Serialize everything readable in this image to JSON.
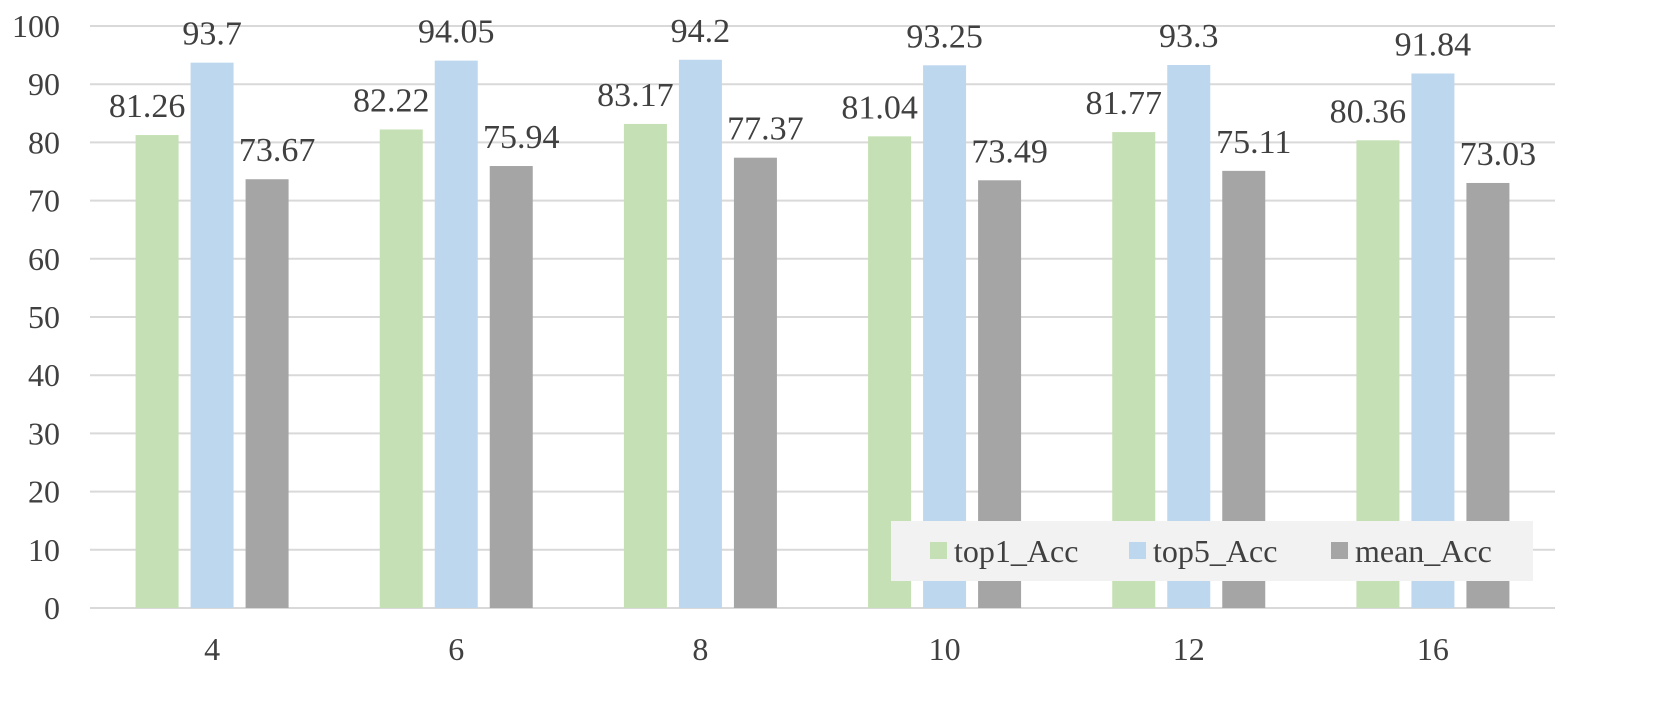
{
  "chart_data": {
    "type": "bar",
    "categories": [
      "4",
      "6",
      "8",
      "10",
      "12",
      "16"
    ],
    "series": [
      {
        "name": "top1_Acc",
        "color": "#c5e0b4",
        "values": [
          81.26,
          82.22,
          83.17,
          81.04,
          81.77,
          80.36
        ]
      },
      {
        "name": "top5_Acc",
        "color": "#bdd7ee",
        "values": [
          93.7,
          94.05,
          94.2,
          93.25,
          93.3,
          91.84
        ]
      },
      {
        "name": "mean_Acc",
        "color": "#a5a5a5",
        "values": [
          73.67,
          75.94,
          77.37,
          73.49,
          75.11,
          73.03
        ]
      }
    ],
    "ylim": [
      0,
      100
    ],
    "yticks": [
      0,
      10,
      20,
      30,
      40,
      50,
      60,
      70,
      80,
      90,
      100
    ],
    "grid": true,
    "legend_position": "bottom-right",
    "data_labels": true
  }
}
